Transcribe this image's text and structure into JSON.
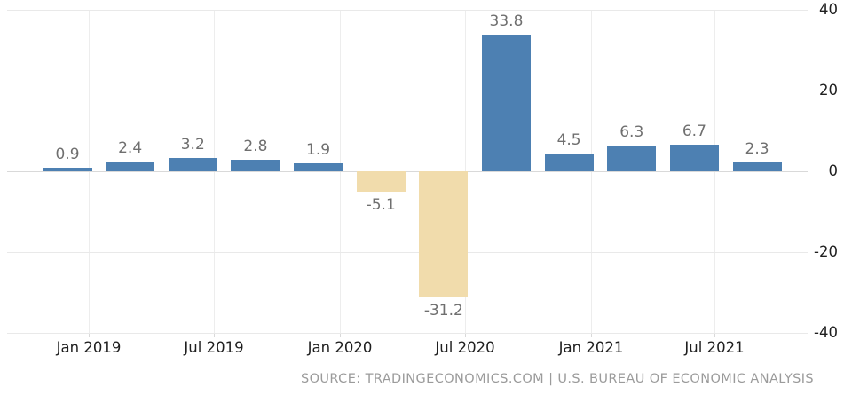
{
  "chart_data": {
    "type": "bar",
    "title": "",
    "xlabel": "",
    "ylabel": "",
    "x_tick_labels": [
      "Jan 2019",
      "Jul 2019",
      "Jan 2020",
      "Jul 2020",
      "Jan 2021",
      "Jul 2021"
    ],
    "values": [
      0.9,
      2.4,
      3.2,
      2.8,
      1.9,
      -5.1,
      -31.2,
      33.8,
      4.5,
      6.3,
      6.7,
      2.3
    ],
    "bar_value_labels": [
      "0.9",
      "2.4",
      "3.2",
      "2.8",
      "1.9",
      "-5.1",
      "-31.2",
      "33.8",
      "4.5",
      "6.3",
      "6.7",
      "2.3"
    ],
    "y_ticks": [
      40,
      20,
      0,
      -20,
      -40
    ],
    "y_tick_labels": [
      "40",
      "20",
      "0",
      "-20",
      "-40"
    ],
    "ylim": [
      -40,
      40
    ],
    "grid": true,
    "legend": "none",
    "colors": {
      "positive_bar": "#4d80b2",
      "negative_bar": "#f1dcac",
      "value_label": "#6f6f6f",
      "axis_label": "#1f1f1f",
      "gridline": "#e9e9e9",
      "source_text": "#9b9b9b"
    }
  },
  "footer": {
    "source_text": "SOURCE: TRADINGECONOMICS.COM | U.S. BUREAU OF ECONOMIC ANALYSIS"
  }
}
